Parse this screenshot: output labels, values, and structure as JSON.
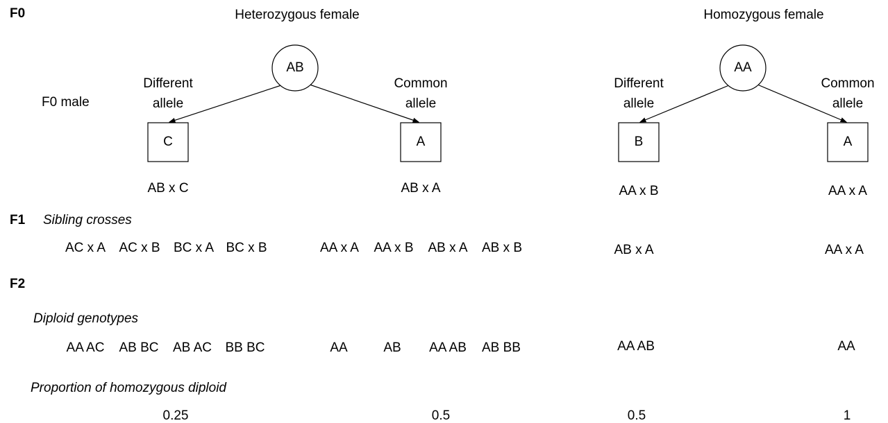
{
  "labels": {
    "f0": "F0",
    "f0_male": "F0 male",
    "f1": "F1",
    "sibling_crosses": "Sibling crosses",
    "f2": "F2",
    "diploid_genotypes": "Diploid genotypes",
    "proportion": "Proportion of homozygous diploid"
  },
  "females": [
    {
      "title": "Heterozygous female",
      "genotype": "AB"
    },
    {
      "title": "Homozygous female",
      "genotype": "AA"
    }
  ],
  "males": [
    {
      "label": [
        "Different",
        "allele"
      ],
      "allele": "C",
      "cross": "AB x C",
      "sibling_crosses": [
        "AC x A",
        "AC x B",
        "BC x A",
        "BC x B"
      ],
      "genotypes": [
        "AA AC",
        "AB BC",
        "AB AC",
        "BB BC"
      ],
      "proportion": 0.25
    },
    {
      "label": [
        "Common",
        "allele"
      ],
      "allele": "A",
      "cross": "AB x A",
      "sibling_crosses": [
        "AA x A",
        "AA x B",
        "AB x A",
        "AB x B"
      ],
      "genotypes": [
        "AA",
        "AB",
        "AA AB",
        "AB BB"
      ],
      "proportion": 0.5
    },
    {
      "label": [
        "Different",
        "allele"
      ],
      "allele": "B",
      "cross": "AA x B",
      "sibling_crosses": [
        "AB x A"
      ],
      "genotypes": [
        "AA AB"
      ],
      "proportion": 0.5
    },
    {
      "label": [
        "Common",
        "allele"
      ],
      "allele": "A",
      "cross": "AA x A",
      "sibling_crosses": [
        "AA x A"
      ],
      "genotypes": [
        "AA"
      ],
      "proportion": 1
    }
  ]
}
